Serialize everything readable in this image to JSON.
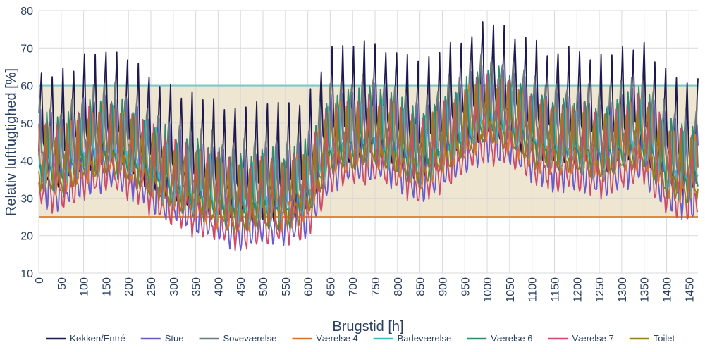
{
  "chart_data": {
    "type": "line",
    "title": "",
    "xlabel": "Brugstid [h]",
    "ylabel": "Relativ luftfugtighed [%]",
    "xlim": [
      0,
      1470
    ],
    "ylim": [
      10,
      80
    ],
    "x_ticks": [
      0,
      50,
      100,
      150,
      200,
      250,
      300,
      350,
      400,
      450,
      500,
      550,
      600,
      650,
      700,
      750,
      800,
      850,
      900,
      950,
      1000,
      1050,
      1100,
      1150,
      1200,
      1250,
      1300,
      1350,
      1400,
      1450
    ],
    "y_ticks": [
      10,
      20,
      30,
      40,
      50,
      60,
      70,
      80
    ],
    "grid": true,
    "legend_position": "bottom",
    "comfort_band": {
      "low": 25,
      "high": 60,
      "fill": "#efe6d2"
    },
    "threshold_lines": [
      {
        "value": 60,
        "color": "#7ec8c8"
      },
      {
        "value": 25,
        "color": "#e08a3c"
      }
    ],
    "series": [
      {
        "name": "Køkken/Entré",
        "color": "#1f1a4e",
        "offset": 6,
        "amp": 1.3,
        "phase": 0.0
      },
      {
        "name": "Stue",
        "color": "#6a5acd",
        "offset": -2,
        "amp": 1.1,
        "phase": 0.4
      },
      {
        "name": "Soveværelse",
        "color": "#6b7b7b",
        "offset": 4,
        "amp": 0.9,
        "phase": 1.1
      },
      {
        "name": "Værelse 4",
        "color": "#d9742b",
        "offset": 0,
        "amp": 0.8,
        "phase": 1.7
      },
      {
        "name": "Badeværelse",
        "color": "#3bb8c4",
        "offset": 1,
        "amp": 0.8,
        "phase": 2.3
      },
      {
        "name": "Værelse 6",
        "color": "#2e8b6e",
        "offset": 1,
        "amp": 0.9,
        "phase": 2.9
      },
      {
        "name": "Værelse 7",
        "color": "#cd4a6a",
        "offset": -3,
        "amp": 1.0,
        "phase": 3.5
      },
      {
        "name": "Toilet",
        "color": "#9c7a1e",
        "offset": 0,
        "amp": 0.7,
        "phase": 4.1
      }
    ],
    "baseline": {
      "x": [
        0,
        50,
        100,
        150,
        200,
        250,
        300,
        350,
        400,
        450,
        500,
        550,
        600,
        650,
        700,
        750,
        800,
        850,
        900,
        950,
        1000,
        1050,
        1100,
        1150,
        1200,
        1250,
        1300,
        1350,
        1400,
        1450,
        1470
      ],
      "y": [
        38,
        36,
        40,
        42,
        40,
        36,
        32,
        30,
        28,
        26,
        28,
        27,
        30,
        42,
        43,
        44,
        42,
        38,
        42,
        46,
        50,
        48,
        44,
        42,
        42,
        40,
        42,
        44,
        36,
        34,
        35
      ]
    },
    "daily_swing": 16
  }
}
